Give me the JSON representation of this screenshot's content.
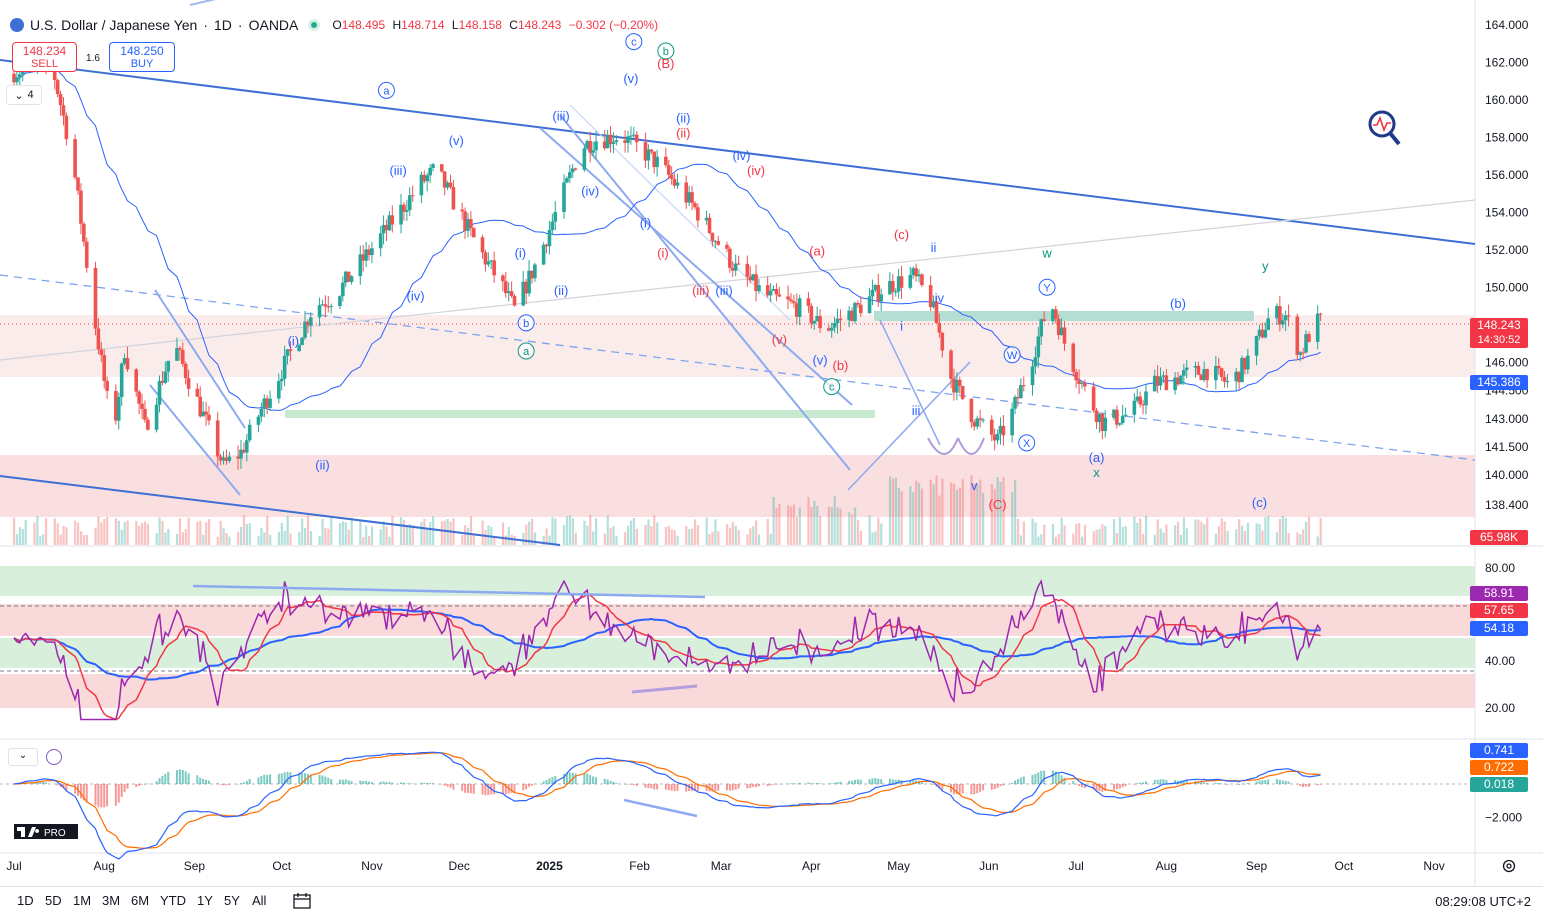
{
  "header": {
    "symbol": "U.S. Dollar / Japanese Yen",
    "interval": "1D",
    "source": "OANDA",
    "open_label": "O",
    "open": "148.495",
    "high_label": "H",
    "high": "148.714",
    "low_label": "L",
    "low": "148.158",
    "close_label": "C",
    "close": "148.243",
    "change": "−0.302 (−0.20%)"
  },
  "trade": {
    "sell_price": "148.234",
    "sell_label": "SELL",
    "spread": "1.6",
    "buy_price": "148.250",
    "buy_label": "BUY"
  },
  "collapse_count": "4",
  "price_scale": {
    "ticks": [
      164,
      162,
      160,
      158,
      156,
      154,
      152,
      150,
      146,
      144.5,
      143,
      141.5,
      140,
      138.4
    ],
    "tick_labels": [
      "164.000",
      "162.000",
      "160.000",
      "158.000",
      "156.000",
      "154.000",
      "152.000",
      "150.000",
      "146.000",
      "144.500",
      "143.000",
      "141.500",
      "140.000",
      "138.400"
    ],
    "last_price": "148.243",
    "countdown": "14:30:52",
    "ma_value": "145.386",
    "volume": "65.98K"
  },
  "rsi_scale": {
    "ticks": [
      80,
      40,
      20
    ],
    "tick_labels": [
      "80.00",
      "40.00",
      "20.00"
    ],
    "rsi_value": "58.91",
    "rsi_ma_value": "57.65",
    "rsi_ma2_value": "54.18"
  },
  "macd_scale": {
    "tick_labels": [
      "−2.000"
    ],
    "macd": "0.741",
    "signal": "0.722",
    "hist": "0.018"
  },
  "time_axis": [
    "Jul",
    "Aug",
    "Sep",
    "Oct",
    "Nov",
    "Dec",
    "2025",
    "Feb",
    "Mar",
    "Apr",
    "May",
    "Jun",
    "Jul",
    "Aug",
    "Sep",
    "Oct",
    "Nov"
  ],
  "range_buttons": [
    "1D",
    "5D",
    "1M",
    "3M",
    "6M",
    "YTD",
    "1Y",
    "5Y",
    "All"
  ],
  "clock": "08:29:08 UTC+2",
  "logo": "PRO",
  "wave_labels": [
    {
      "t": "a",
      "d": 128,
      "p": 160.3,
      "c": "blue",
      "circ": true
    },
    {
      "t": "c",
      "d": 213,
      "p": 162.9,
      "c": "blue",
      "circ": true
    },
    {
      "t": "b",
      "d": 224,
      "p": 162.4,
      "c": "green",
      "circ": true
    },
    {
      "t": "(B)",
      "d": 224,
      "p": 161.7,
      "c": "red"
    },
    {
      "t": "(v)",
      "d": 212,
      "p": 160.9,
      "c": "blue"
    },
    {
      "t": "(iii)",
      "d": 188,
      "p": 158.9,
      "c": "blue"
    },
    {
      "t": "(v)",
      "d": 152,
      "p": 157.6,
      "c": "blue"
    },
    {
      "t": "(iii)",
      "d": 132,
      "p": 156.0,
      "c": "blue"
    },
    {
      "t": "(ii)",
      "d": 230,
      "p": 158.8,
      "c": "blue"
    },
    {
      "t": "(ii)",
      "d": 230,
      "p": 158.0,
      "c": "red"
    },
    {
      "t": "(iv)",
      "d": 250,
      "p": 156.8,
      "c": "blue"
    },
    {
      "t": "(iv)",
      "d": 255,
      "p": 156.0,
      "c": "red"
    },
    {
      "t": "(iv)",
      "d": 198,
      "p": 154.9,
      "c": "blue"
    },
    {
      "t": "(i)",
      "d": 217,
      "p": 153.2,
      "c": "blue"
    },
    {
      "t": "(i)",
      "d": 223,
      "p": 151.6,
      "c": "red"
    },
    {
      "t": "(a)",
      "d": 276,
      "p": 151.7,
      "c": "red"
    },
    {
      "t": "(c)",
      "d": 305,
      "p": 152.6,
      "c": "red"
    },
    {
      "t": "ii",
      "d": 316,
      "p": 151.9,
      "c": "blue"
    },
    {
      "t": "iv",
      "d": 318,
      "p": 149.2,
      "c": "blue"
    },
    {
      "t": "i",
      "d": 305,
      "p": 147.7,
      "c": "blue"
    },
    {
      "t": "(i)",
      "d": 174,
      "p": 151.6,
      "c": "blue"
    },
    {
      "t": "(ii)",
      "d": 188,
      "p": 149.6,
      "c": "blue"
    },
    {
      "t": "(iv)",
      "d": 138,
      "p": 149.3,
      "c": "blue"
    },
    {
      "t": "b",
      "d": 176,
      "p": 147.9,
      "c": "blue",
      "circ": true
    },
    {
      "t": "a",
      "d": 176,
      "p": 146.4,
      "c": "green",
      "circ": true
    },
    {
      "t": "(i)",
      "d": 96,
      "p": 146.9,
      "c": "blue"
    },
    {
      "t": "(ii)",
      "d": 106,
      "p": 140.3,
      "c": "blue"
    },
    {
      "t": "(iii)",
      "d": 236,
      "p": 149.6,
      "c": "red"
    },
    {
      "t": "(iii)",
      "d": 244,
      "p": 149.6,
      "c": "blue"
    },
    {
      "t": "(v)",
      "d": 263,
      "p": 147.0,
      "c": "red"
    },
    {
      "t": "(v)",
      "d": 277,
      "p": 145.9,
      "c": "blue"
    },
    {
      "t": "(b)",
      "d": 284,
      "p": 145.6,
      "c": "red"
    },
    {
      "t": "c",
      "d": 281,
      "p": 144.5,
      "c": "green",
      "circ": true
    },
    {
      "t": "iii",
      "d": 310,
      "p": 143.2,
      "c": "blue"
    },
    {
      "t": "v",
      "d": 330,
      "p": 139.2,
      "c": "blue"
    },
    {
      "t": "(C)",
      "d": 338,
      "p": 138.2,
      "c": "red"
    },
    {
      "t": "w",
      "d": 355,
      "p": 151.6,
      "c": "green"
    },
    {
      "t": "Y",
      "d": 355,
      "p": 149.8,
      "c": "blue",
      "circ": true
    },
    {
      "t": "W",
      "d": 343,
      "p": 146.2,
      "c": "blue",
      "circ": true
    },
    {
      "t": "X",
      "d": 348,
      "p": 141.5,
      "c": "blue",
      "circ": true
    },
    {
      "t": "(a)",
      "d": 372,
      "p": 140.7,
      "c": "blue"
    },
    {
      "t": "x",
      "d": 372,
      "p": 139.9,
      "c": "green"
    },
    {
      "t": "(b)",
      "d": 400,
      "p": 148.9,
      "c": "blue"
    },
    {
      "t": "y",
      "d": 430,
      "p": 150.9,
      "c": "green"
    },
    {
      "t": "(c)",
      "d": 428,
      "p": 138.3,
      "c": "blue"
    }
  ],
  "colors": {
    "up": "#26a69a",
    "down": "#ef5350",
    "trend": "#3d6fd4",
    "ma": "#2962ff",
    "rsi": "#9c27b0",
    "rsi_ma": "#f23645",
    "macd": "#2962ff",
    "signal": "#ff6d00",
    "wave_blue": "#2962ff",
    "wave_red": "#f23645",
    "wave_green": "#089981"
  }
}
